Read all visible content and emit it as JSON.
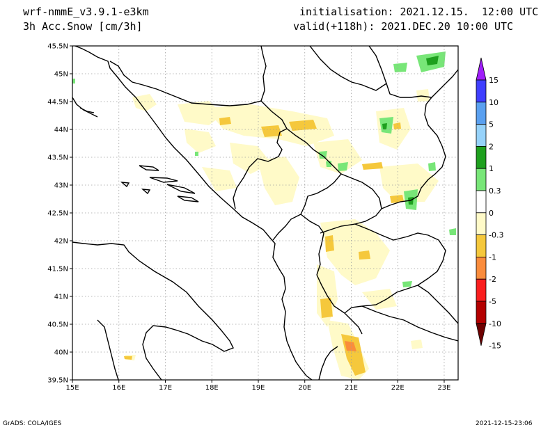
{
  "header": {
    "model": "wrf-nmmE_v3.9.1-e3km",
    "field": "3h Acc.Snow [cm/3h]",
    "initialisation": "initialisation: 2021.12.15.  12:00 UTC",
    "valid": "valid(+118h): 2021.DEC.20 10:00 UTC"
  },
  "footer": {
    "left": "GrADS: COLA/IGES",
    "right": "2021-12-15-23:06"
  },
  "map": {
    "lon_range": [
      15,
      23.3
    ],
    "lat_range": [
      39.5,
      45.5
    ],
    "lon_ticks": [
      {
        "v": 15,
        "label": "15E"
      },
      {
        "v": 16,
        "label": "16E"
      },
      {
        "v": 17,
        "label": "17E"
      },
      {
        "v": 18,
        "label": "18E"
      },
      {
        "v": 19,
        "label": "19E"
      },
      {
        "v": 20,
        "label": "20E"
      },
      {
        "v": 21,
        "label": "21E"
      },
      {
        "v": 22,
        "label": "22E"
      },
      {
        "v": 23,
        "label": "23E"
      }
    ],
    "lat_ticks": [
      {
        "v": 39.5,
        "label": "39.5N"
      },
      {
        "v": 40,
        "label": "40N"
      },
      {
        "v": 40.5,
        "label": "40.5N"
      },
      {
        "v": 41,
        "label": "41N"
      },
      {
        "v": 41.5,
        "label": "41.5N"
      },
      {
        "v": 42,
        "label": "42N"
      },
      {
        "v": 42.5,
        "label": "42.5N"
      },
      {
        "v": 43,
        "label": "43N"
      },
      {
        "v": 43.5,
        "label": "43.5N"
      },
      {
        "v": 44,
        "label": "44N"
      },
      {
        "v": 44.5,
        "label": "44.5N"
      },
      {
        "v": 45,
        "label": "45N"
      },
      {
        "v": 45.5,
        "label": "45.5N"
      }
    ],
    "grid": true
  },
  "colorbar": {
    "labels": [
      "15",
      "10",
      "5",
      "2",
      "1",
      "0.3",
      "0",
      "-0.3",
      "-1",
      "-2",
      "-5",
      "-10",
      "-15"
    ],
    "colors": [
      "#3f3fff",
      "#5aa0f0",
      "#96d2fa",
      "#1ea01e",
      "#78e678",
      "#ffffff",
      "#fffac8",
      "#f5c83c",
      "#fa8c3c",
      "#fa1e1e",
      "#b40000"
    ],
    "top_arrow": "#a01efa",
    "bottom_arrow": "#6e0000"
  }
}
